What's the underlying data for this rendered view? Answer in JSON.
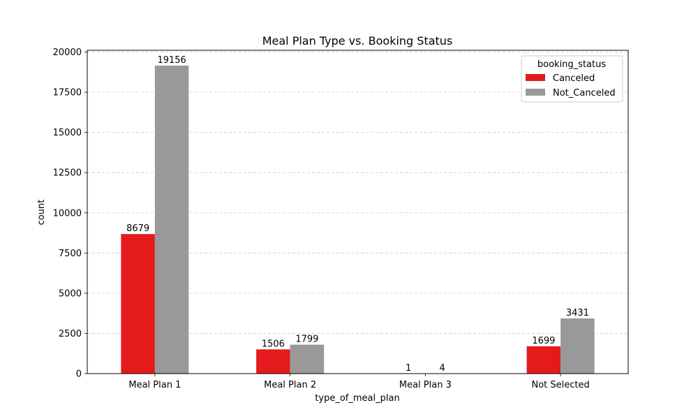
{
  "chart_data": {
    "type": "bar",
    "title": "Meal Plan Type vs. Booking Status",
    "xlabel": "type_of_meal_plan",
    "ylabel": "count",
    "categories": [
      "Meal Plan 1",
      "Meal Plan 2",
      "Meal Plan 3",
      "Not Selected"
    ],
    "series": [
      {
        "name": "Canceled",
        "values": [
          8679,
          1506,
          1,
          1699
        ],
        "color": "#e41a1c"
      },
      {
        "name": "Not_Canceled",
        "values": [
          19156,
          1799,
          4,
          3431
        ],
        "color": "#999999"
      }
    ],
    "ylim": [
      0,
      20110
    ],
    "yticks": [
      0,
      2500,
      5000,
      7500,
      10000,
      12500,
      15000,
      17500,
      20000
    ],
    "grid": true,
    "legend": {
      "title": "booking_status",
      "position": "top-right"
    }
  }
}
